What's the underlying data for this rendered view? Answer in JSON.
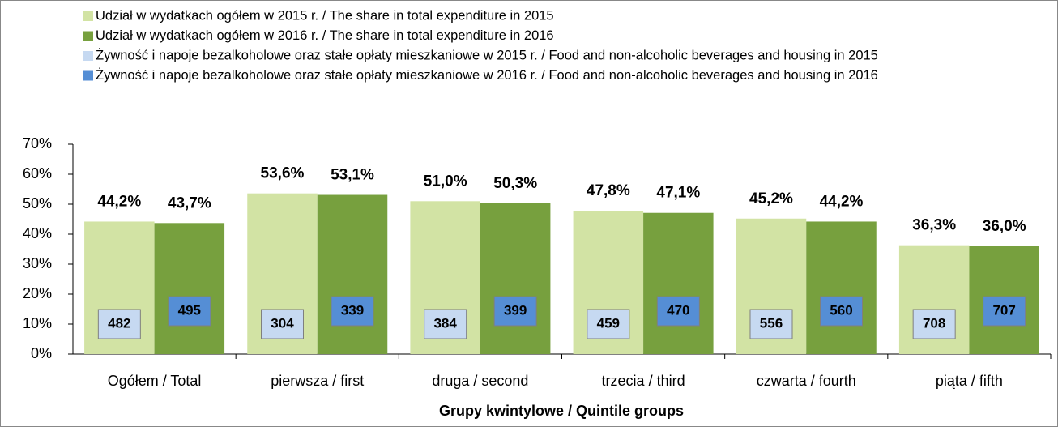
{
  "chart_data": {
    "type": "bar",
    "categories": [
      "Ogółem / Total",
      "pierwsza / first",
      "druga / second",
      "trzecia / third",
      "czwarta / fourth",
      "piąta / fifth"
    ],
    "series": [
      {
        "name": "Udział w wydatkach ogółem w 2015 r. / The share in total expenditure in 2015",
        "color": "#d2e3a4",
        "values": [
          44.2,
          53.6,
          51.0,
          47.8,
          45.2,
          36.3
        ],
        "value_labels": [
          "44,2%",
          "53,6%",
          "51,0%",
          "47,8%",
          "45,2%",
          "36,3%"
        ]
      },
      {
        "name": "Udział w wydatkach ogółem w 2016 r. / The share in total expenditure in 2016",
        "color": "#77a03e",
        "values": [
          43.7,
          53.1,
          50.3,
          47.1,
          44.2,
          36.0
        ],
        "value_labels": [
          "43,7%",
          "53,1%",
          "50,3%",
          "47,1%",
          "44,2%",
          "36,0%"
        ]
      },
      {
        "name": "Żywność i napoje bezalkoholowe oraz stałe opłaty mieszkaniowe w 2015 r. / Food and non-alcoholic beverages and housing in 2015",
        "color": "#c6d9f1",
        "values": [
          482,
          304,
          384,
          459,
          556,
          708
        ]
      },
      {
        "name": "Żywność i napoje bezalkoholowe oraz stałe opłaty mieszkaniowe w 2016 r. / Food and non-alcoholic beverages and housing in 2016",
        "color": "#558ed5",
        "values": [
          495,
          339,
          399,
          470,
          560,
          707
        ]
      }
    ],
    "xlabel": "Grupy kwintylowe / Quintile groups",
    "ylim": [
      0,
      70
    ],
    "yticks": [
      {
        "value": 0,
        "label": "0%"
      },
      {
        "value": 10,
        "label": "10%"
      },
      {
        "value": 20,
        "label": "20%"
      },
      {
        "value": 30,
        "label": "30%"
      },
      {
        "value": 40,
        "label": "40%"
      },
      {
        "value": 50,
        "label": "50%"
      },
      {
        "value": 60,
        "label": "60%"
      },
      {
        "value": 70,
        "label": "70%"
      }
    ]
  }
}
